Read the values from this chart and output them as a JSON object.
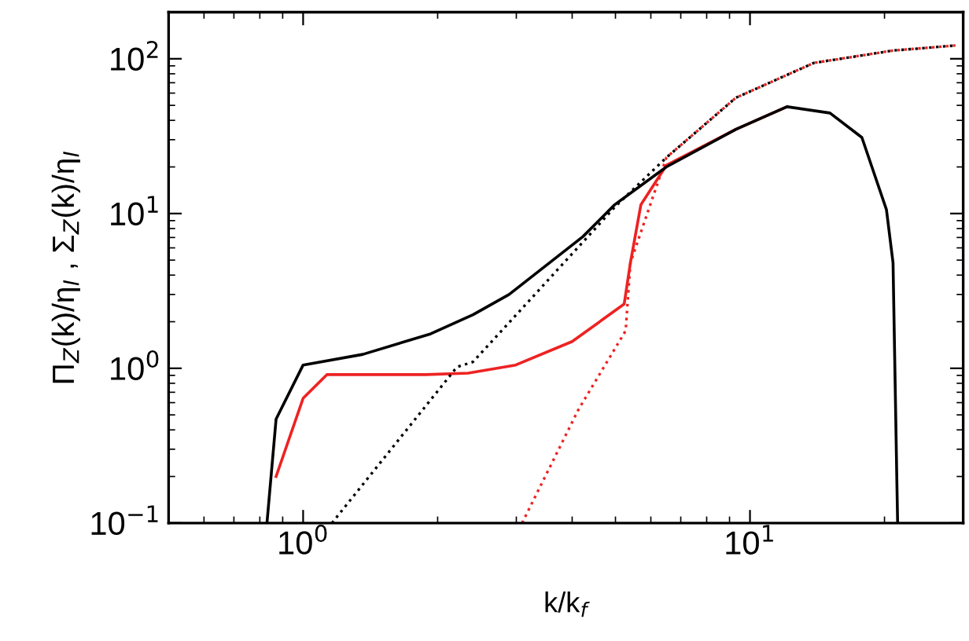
{
  "chart_data": {
    "type": "line",
    "xlabel": "k/k$_{f}$",
    "ylabel": "Π$_{Z}$(k)/η$_{I}$ , Σ$_{Z}$(k)/η$_{I}$",
    "log": "xy",
    "grid": false,
    "legend": false,
    "marker": "none",
    "xlim": [
      0.5,
      30
    ],
    "xticks": [
      {
        "value": 1,
        "label": "10$^{0}$"
      },
      {
        "value": 10,
        "label": "10$^{1}$"
      }
    ],
    "ylim": [
      0.1,
      200
    ],
    "yticks": [
      {
        "value": 0.1,
        "label": "10$^{−1}$"
      },
      {
        "value": 1,
        "label": "10$^{0}$"
      },
      {
        "value": 10,
        "label": "10$^{1}$"
      },
      {
        "value": 100,
        "label": "10$^{2}$"
      }
    ],
    "series": [
      {
        "color": "#000000",
        "line_style": "solid",
        "x": [
          0.83,
          0.87,
          1.0,
          1.36,
          1.93,
          2.4,
          2.89,
          4.23,
          4.98,
          6.5,
          9.3,
          12.1,
          15.1,
          17.8,
          20.2,
          20.9,
          21.3,
          21.4
        ],
        "values": [
          0.1,
          0.47,
          1.05,
          1.23,
          1.67,
          2.22,
          3.0,
          7.1,
          11.4,
          20,
          35,
          49,
          44.6,
          31,
          10.6,
          4.8,
          0.21,
          0.1
        ]
      },
      {
        "color": "#ee2222",
        "line_style": "solid",
        "x": [
          0.87,
          1.0,
          1.13,
          1.88,
          2.34,
          2.99,
          4.0,
          5.23,
          5.4,
          5.7,
          6.5,
          9.3,
          12.1
        ],
        "values": [
          0.2,
          0.64,
          0.91,
          0.91,
          0.93,
          1.05,
          1.49,
          2.6,
          4.8,
          11.4,
          20.5,
          35,
          49
        ]
      },
      {
        "color": "#000000",
        "line_style": "dotted",
        "x": [
          1.16,
          2.21,
          2.4,
          4.34,
          4.98,
          6.5,
          9.3,
          13.9,
          20.9,
          29
        ],
        "values": [
          0.1,
          1.02,
          1.1,
          7.1,
          11.0,
          23,
          56,
          94,
          113,
          122
        ]
      },
      {
        "color": "#ee2222",
        "line_style": "dotted",
        "x": [
          3.09,
          4.13,
          5.27,
          5.4,
          6.5,
          9.3,
          13.9,
          20.9,
          29
        ],
        "values": [
          0.1,
          0.54,
          1.75,
          4.8,
          23,
          56,
          94,
          113,
          122
        ]
      }
    ]
  }
}
